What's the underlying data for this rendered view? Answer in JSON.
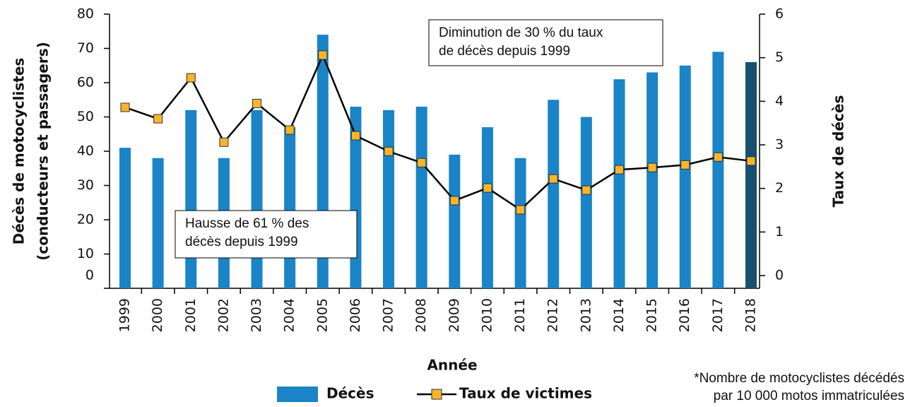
{
  "chart_data": {
    "type": "bar_line",
    "x_label": "Année",
    "y_label": [
      "Décès de motocyclistes",
      "(conducteurs et passagers)"
    ],
    "y2_label": "Taux de décès",
    "categories": [
      "1999",
      "2000",
      "2001",
      "2002",
      "2003",
      "2004",
      "2005",
      "2006",
      "2007",
      "2008",
      "2009",
      "2010",
      "2011",
      "2012",
      "2013",
      "2014",
      "2015",
      "2016",
      "2017",
      "2018"
    ],
    "series": [
      {
        "name": "Décès",
        "type": "bar",
        "color": "#1a84c7",
        "colors": [
          "#1a84c7",
          "#1a84c7",
          "#1a84c7",
          "#1a84c7",
          "#1a84c7",
          "#1a84c7",
          "#1a84c7",
          "#1a84c7",
          "#1a84c7",
          "#1a84c7",
          "#1a84c7",
          "#1a84c7",
          "#1a84c7",
          "#1a84c7",
          "#1a84c7",
          "#1a84c7",
          "#1a84c7",
          "#1a84c7",
          "#1a84c7",
          "#17506e"
        ],
        "values": [
          41,
          38,
          52,
          38,
          52,
          47,
          74,
          53,
          52,
          53,
          39,
          47,
          38,
          55,
          50,
          61,
          63,
          65,
          69,
          66
        ]
      },
      {
        "name": "Taux de victimes",
        "type": "line",
        "axis": "y2",
        "color": "#000000",
        "marker_color": "#f7b52c",
        "values": [
          3.86,
          3.6,
          4.54,
          3.06,
          3.95,
          3.34,
          5.06,
          3.21,
          2.85,
          2.59,
          1.72,
          2.01,
          1.51,
          2.22,
          1.96,
          2.43,
          2.48,
          2.54,
          2.72,
          2.63
        ]
      }
    ],
    "ylim": [
      0,
      80
    ],
    "yticks": [
      0,
      10,
      20,
      30,
      40,
      50,
      60,
      70,
      80
    ],
    "y2lim": [
      0,
      6
    ],
    "y2ticks": [
      0,
      1,
      2,
      3,
      4,
      5,
      6
    ],
    "annotations": [
      [
        "Diminution de 30 % du taux",
        "de décès depuis 1999"
      ],
      [
        "Hausse de 61 % des",
        "décès depuis 1999"
      ]
    ],
    "footnote": [
      "*Nombre de motocyclistes décédés",
      "par 10 000 motos immatriculées"
    ]
  }
}
